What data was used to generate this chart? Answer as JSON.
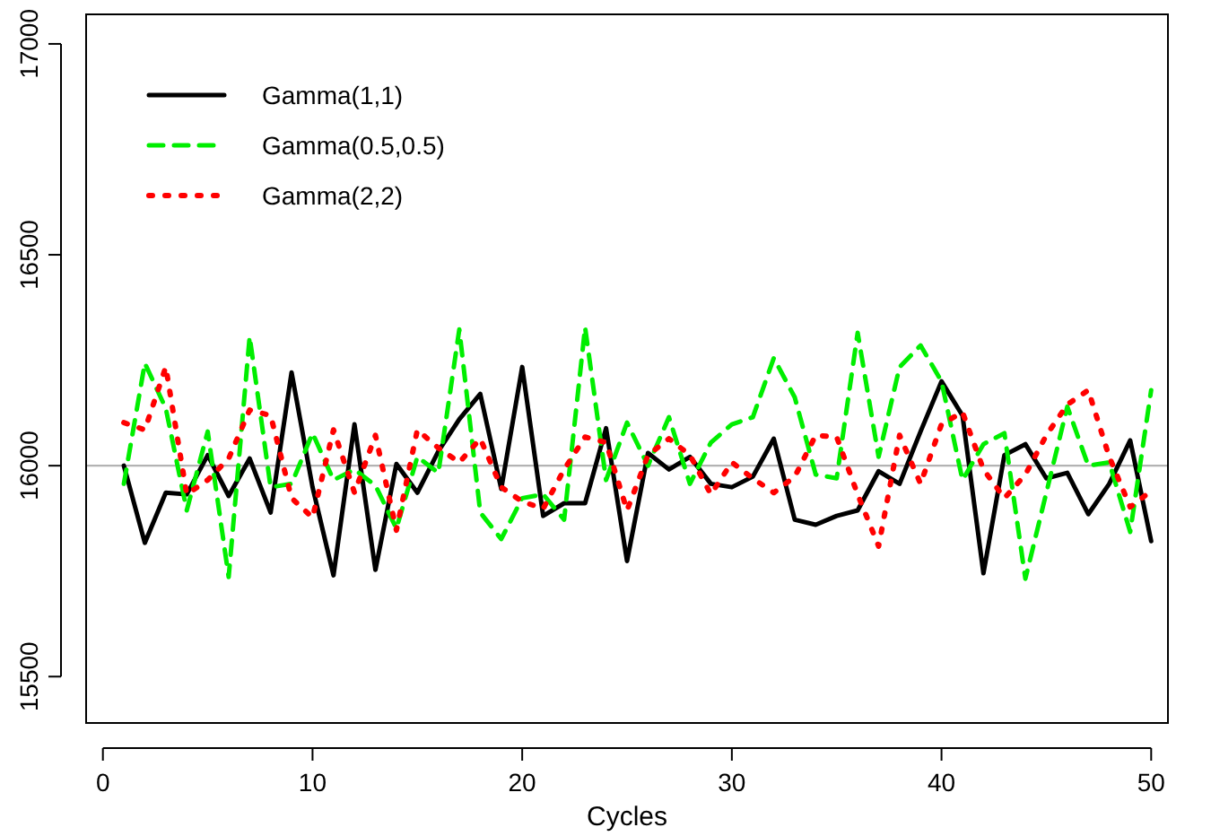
{
  "chart_data": {
    "type": "line",
    "xlabel": "Cycles",
    "x": [
      1,
      2,
      3,
      4,
      5,
      6,
      7,
      8,
      9,
      10,
      11,
      12,
      13,
      14,
      15,
      16,
      17,
      18,
      19,
      20,
      21,
      22,
      23,
      24,
      25,
      26,
      27,
      28,
      29,
      30,
      31,
      32,
      33,
      34,
      35,
      36,
      37,
      38,
      39,
      40,
      41,
      42,
      43,
      44,
      45,
      46,
      47,
      48,
      49,
      50
    ],
    "xlim": [
      -0.8,
      50.8
    ],
    "xticks": [
      0,
      10,
      20,
      30,
      40,
      50
    ],
    "ylim": [
      15390,
      17070
    ],
    "yticks": [
      15500,
      16000,
      16500,
      17000
    ],
    "grid": false,
    "legend": "top left",
    "marker": "none",
    "ref_lines": [
      {
        "axis": "y",
        "value": 16000,
        "color": "#b3b3b3"
      }
    ],
    "series": [
      {
        "name": "Gamma(1,1)",
        "color": "#000000",
        "line_style": "solid",
        "values": [
          16000,
          15817,
          15936,
          15932,
          16025,
          15928,
          16017,
          15889,
          16221,
          15949,
          15740,
          16098,
          15753,
          16004,
          15936,
          16034,
          16110,
          16170,
          15945,
          16234,
          15881,
          15911,
          15911,
          16089,
          15774,
          16030,
          15991,
          16021,
          15957,
          15949,
          15974,
          16064,
          15872,
          15860,
          15881,
          15894,
          15987,
          15957,
          16081,
          16200,
          16119,
          15745,
          16025,
          16051,
          15970,
          15983,
          15885,
          15957,
          16060,
          15821
        ]
      },
      {
        "name": "Gamma(0.5,0.5)",
        "color": "#00ee00",
        "line_style": "dashed",
        "values": [
          15957,
          16243,
          16136,
          15894,
          16081,
          15736,
          16306,
          15949,
          15957,
          16077,
          15966,
          15991,
          15953,
          15851,
          16021,
          15983,
          16323,
          15889,
          15826,
          15923,
          15932,
          15872,
          16328,
          15966,
          16102,
          16000,
          16115,
          15957,
          16055,
          16098,
          16115,
          16255,
          16162,
          15979,
          15970,
          16315,
          16021,
          16234,
          16285,
          16200,
          15966,
          16051,
          16077,
          15732,
          15936,
          16140,
          16000,
          16008,
          15843,
          16179
        ]
      },
      {
        "name": "Gamma(2,2)",
        "color": "#ff0000",
        "line_style": "dotted",
        "values": [
          16102,
          16085,
          16234,
          15932,
          15966,
          16017,
          16132,
          16119,
          15923,
          15877,
          16085,
          15936,
          16072,
          15847,
          16085,
          16042,
          16008,
          16064,
          15949,
          15915,
          15898,
          15991,
          16068,
          16055,
          15894,
          16025,
          16064,
          16025,
          15932,
          16008,
          15970,
          15936,
          15974,
          16072,
          16068,
          15932,
          15809,
          16072,
          15957,
          16098,
          16127,
          15991,
          15923,
          15979,
          16072,
          16145,
          16179,
          16021,
          15902,
          15940
        ]
      }
    ]
  }
}
